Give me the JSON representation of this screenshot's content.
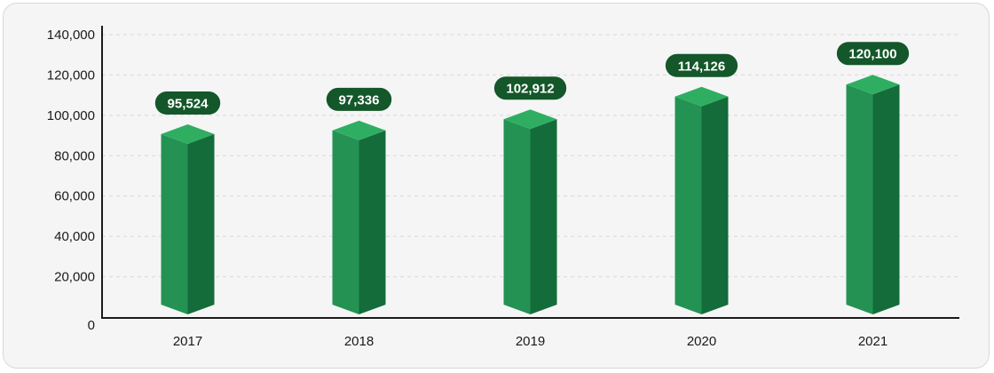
{
  "card": {
    "background_color": "#f5f5f6",
    "border_color": "#d8d8d8",
    "page_background": "#ffffff"
  },
  "chart_data": {
    "type": "bar",
    "title": "",
    "xlabel": "",
    "ylabel": "",
    "categories": [
      "2017",
      "2018",
      "2019",
      "2020",
      "2021"
    ],
    "values": [
      95524,
      97336,
      102912,
      114126,
      120100
    ],
    "value_labels": [
      "95,524",
      "97,336",
      "102,912",
      "114,126",
      "120,100"
    ],
    "ylim": [
      0,
      140000
    ],
    "ytick_step": 20000,
    "ytick_labels": [
      "0",
      "20,000",
      "40,000",
      "60,000",
      "80,000",
      "100,000",
      "120,000",
      "140,000"
    ],
    "grid": "horizontal-dashed",
    "legend": "none",
    "style": {
      "bar_3d": true,
      "bar_top_color": "#2fae62",
      "bar_left_color": "#249253",
      "bar_right_color": "#136c3a",
      "pill_color": "#14572a",
      "pill_text_color": "#ffffff",
      "axis_color": "#1a1a1a",
      "grid_color": "#d8d8d8",
      "tick_text_color": "#1a1a1a"
    }
  }
}
